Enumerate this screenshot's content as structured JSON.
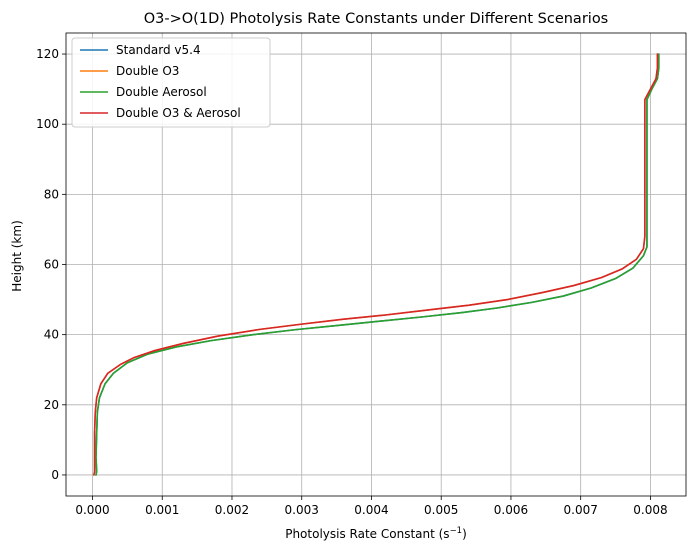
{
  "chart_data": {
    "type": "line",
    "title": "O3->O(1D) Photolysis Rate Constants under Different Scenarios",
    "xlabel": "Photolysis Rate Constant (s",
    "xlabel_sup": "−1",
    "xlabel_close": ")",
    "ylabel": "Height (km)",
    "xlim": [
      -0.00038,
      0.00851
    ],
    "ylim": [
      -6,
      126
    ],
    "xticks": [
      0.0,
      0.001,
      0.002,
      0.003,
      0.004,
      0.005,
      0.006,
      0.007,
      0.008
    ],
    "xtick_labels": [
      "0.000",
      "0.001",
      "0.002",
      "0.003",
      "0.004",
      "0.005",
      "0.006",
      "0.007",
      "0.008"
    ],
    "yticks": [
      0,
      20,
      40,
      60,
      80,
      100,
      120
    ],
    "ytick_labels": [
      "0",
      "20",
      "40",
      "60",
      "80",
      "100",
      "120"
    ],
    "grid": true,
    "legend_position": "top-left",
    "series": [
      {
        "name": "Standard v5.4",
        "color": "#1f77b4",
        "points": [
          [
            5e-05,
            0
          ],
          [
            6e-05,
            1
          ],
          [
            5e-05,
            5
          ],
          [
            6e-05,
            12
          ],
          [
            7e-05,
            18
          ],
          [
            0.0001,
            22
          ],
          [
            0.00018,
            26
          ],
          [
            0.0003,
            29
          ],
          [
            0.0005,
            32
          ],
          [
            0.0008,
            34.5
          ],
          [
            0.0012,
            36.5
          ],
          [
            0.0017,
            38.3
          ],
          [
            0.0023,
            40.0
          ],
          [
            0.0029,
            41.4
          ],
          [
            0.0035,
            42.6
          ],
          [
            0.0041,
            43.8
          ],
          [
            0.0047,
            45.0
          ],
          [
            0.0053,
            46.3
          ],
          [
            0.0058,
            47.6
          ],
          [
            0.0063,
            49.2
          ],
          [
            0.00675,
            51.0
          ],
          [
            0.00715,
            53.3
          ],
          [
            0.0075,
            56.0
          ],
          [
            0.00775,
            59.0
          ],
          [
            0.0079,
            62.5
          ],
          [
            0.00795,
            65.0
          ],
          [
            0.00795,
            70
          ],
          [
            0.00795,
            80
          ],
          [
            0.00795,
            90
          ],
          [
            0.00795,
            100
          ],
          [
            0.00795,
            107
          ],
          [
            0.00802,
            110
          ],
          [
            0.0081,
            113
          ],
          [
            0.00812,
            116
          ],
          [
            0.00812,
            120
          ]
        ]
      },
      {
        "name": "Double O3",
        "color": "#ff7f0e",
        "points": [
          [
            2e-05,
            0
          ],
          [
            3e-05,
            1
          ],
          [
            3e-05,
            5
          ],
          [
            3e-05,
            12
          ],
          [
            4e-05,
            18
          ],
          [
            6e-05,
            22
          ],
          [
            0.00012,
            26
          ],
          [
            0.00022,
            29
          ],
          [
            0.0004,
            31.5
          ],
          [
            0.0006,
            33.5
          ],
          [
            0.0009,
            35.5
          ],
          [
            0.0013,
            37.5
          ],
          [
            0.0018,
            39.6
          ],
          [
            0.0024,
            41.5
          ],
          [
            0.003,
            43.0
          ],
          [
            0.0036,
            44.4
          ],
          [
            0.0042,
            45.6
          ],
          [
            0.0048,
            47.0
          ],
          [
            0.0054,
            48.4
          ],
          [
            0.00595,
            50.0
          ],
          [
            0.00645,
            52.0
          ],
          [
            0.0069,
            54.0
          ],
          [
            0.0073,
            56.3
          ],
          [
            0.0076,
            58.8
          ],
          [
            0.0078,
            61.5
          ],
          [
            0.0079,
            64.5
          ],
          [
            0.00792,
            68
          ],
          [
            0.00792,
            80
          ],
          [
            0.00792,
            90
          ],
          [
            0.00792,
            100
          ],
          [
            0.00792,
            107
          ],
          [
            0.008,
            110
          ],
          [
            0.00808,
            113
          ],
          [
            0.0081,
            116
          ],
          [
            0.0081,
            120
          ]
        ]
      },
      {
        "name": "Double Aerosol",
        "color": "#2ca02c",
        "points": [
          [
            5e-05,
            0
          ],
          [
            6e-05,
            1
          ],
          [
            5e-05,
            5
          ],
          [
            6e-05,
            12
          ],
          [
            7e-05,
            18
          ],
          [
            0.0001,
            22
          ],
          [
            0.00018,
            26
          ],
          [
            0.0003,
            29
          ],
          [
            0.0005,
            32
          ],
          [
            0.0008,
            34.5
          ],
          [
            0.0012,
            36.5
          ],
          [
            0.0017,
            38.3
          ],
          [
            0.0023,
            40.0
          ],
          [
            0.0029,
            41.4
          ],
          [
            0.0035,
            42.6
          ],
          [
            0.0041,
            43.8
          ],
          [
            0.0047,
            45.0
          ],
          [
            0.0053,
            46.3
          ],
          [
            0.0058,
            47.6
          ],
          [
            0.0063,
            49.2
          ],
          [
            0.00675,
            51.0
          ],
          [
            0.00715,
            53.3
          ],
          [
            0.0075,
            56.0
          ],
          [
            0.00775,
            59.0
          ],
          [
            0.0079,
            62.5
          ],
          [
            0.00795,
            65.0
          ],
          [
            0.00795,
            70
          ],
          [
            0.00795,
            80
          ],
          [
            0.00795,
            90
          ],
          [
            0.00795,
            100
          ],
          [
            0.00795,
            107
          ],
          [
            0.00802,
            110
          ],
          [
            0.0081,
            113
          ],
          [
            0.00812,
            116
          ],
          [
            0.00812,
            120
          ]
        ]
      },
      {
        "name": "Double O3 & Aerosol",
        "color": "#d62728",
        "points": [
          [
            2e-05,
            0
          ],
          [
            3e-05,
            1
          ],
          [
            3e-05,
            5
          ],
          [
            3e-05,
            12
          ],
          [
            4e-05,
            18
          ],
          [
            6e-05,
            22
          ],
          [
            0.00012,
            26
          ],
          [
            0.00022,
            29
          ],
          [
            0.0004,
            31.5
          ],
          [
            0.0006,
            33.5
          ],
          [
            0.0009,
            35.5
          ],
          [
            0.0013,
            37.5
          ],
          [
            0.0018,
            39.6
          ],
          [
            0.0024,
            41.5
          ],
          [
            0.003,
            43.0
          ],
          [
            0.0036,
            44.4
          ],
          [
            0.0042,
            45.6
          ],
          [
            0.0048,
            47.0
          ],
          [
            0.0054,
            48.4
          ],
          [
            0.00595,
            50.0
          ],
          [
            0.00645,
            52.0
          ],
          [
            0.0069,
            54.0
          ],
          [
            0.0073,
            56.3
          ],
          [
            0.0076,
            58.8
          ],
          [
            0.0078,
            61.5
          ],
          [
            0.0079,
            64.5
          ],
          [
            0.00792,
            68
          ],
          [
            0.00792,
            80
          ],
          [
            0.00792,
            90
          ],
          [
            0.00792,
            100
          ],
          [
            0.00792,
            107
          ],
          [
            0.008,
            110
          ],
          [
            0.00808,
            113
          ],
          [
            0.0081,
            116
          ],
          [
            0.0081,
            120
          ]
        ]
      }
    ]
  }
}
